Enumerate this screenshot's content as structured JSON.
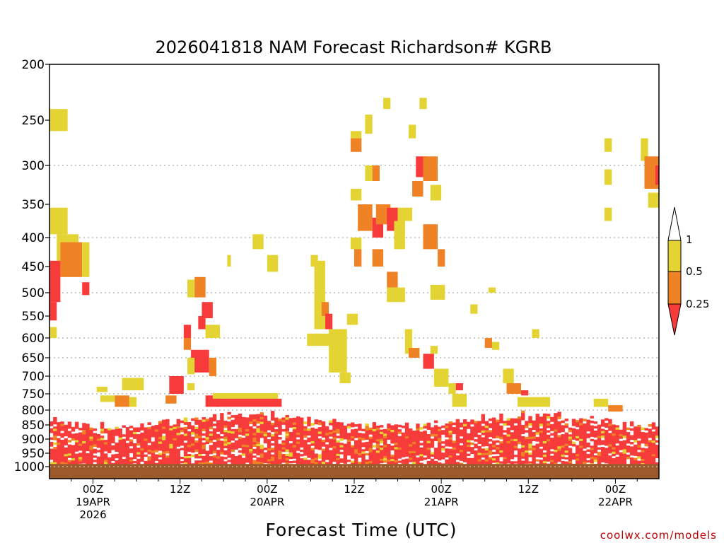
{
  "chart_data": {
    "type": "heatmap",
    "title": "2026041818 NAM Forecast Richardson# KGRB",
    "xlabel": "Forecast Time (UTC)",
    "ylabel": "",
    "x_unit": "forecast hours from 2026-04-18 18Z",
    "xlim": [
      0,
      84
    ],
    "y_unit": "pressure (hPa)",
    "ylim": [
      200,
      1000
    ],
    "y_ticks": [
      200,
      250,
      300,
      350,
      400,
      450,
      500,
      550,
      600,
      650,
      700,
      750,
      800,
      850,
      900,
      950,
      1000
    ],
    "y_gridlines": [
      300,
      400,
      500,
      600,
      650,
      700,
      750,
      800
    ],
    "x_ticks": [
      {
        "hour": 6,
        "lines": [
          "00Z",
          "19APR",
          "2026"
        ]
      },
      {
        "hour": 18,
        "lines": [
          "12Z"
        ]
      },
      {
        "hour": 30,
        "lines": [
          "00Z",
          "20APR"
        ]
      },
      {
        "hour": 42,
        "lines": [
          "12Z"
        ]
      },
      {
        "hour": 54,
        "lines": [
          "00Z",
          "21APR"
        ]
      },
      {
        "hour": 66,
        "lines": [
          "12Z"
        ]
      },
      {
        "hour": 78,
        "lines": [
          "00Z",
          "22APR"
        ]
      }
    ],
    "legend": {
      "placement": "right",
      "levels": [
        "1",
        "0.5",
        "0.25"
      ],
      "bins": [
        {
          "range": "> 1",
          "color": "#ffffff"
        },
        {
          "range": "0.5 - 1",
          "color": "#e3d434"
        },
        {
          "range": "0.25 - 0.5",
          "color": "#ef8224"
        },
        {
          "range": "< 0.25",
          "color": "#f73b3b"
        }
      ]
    },
    "underground_color": "#9c5a2b",
    "categories": [
      "0.5-1",
      "0.25-0.5",
      "<0.25"
    ],
    "cells": [
      {
        "t0": 0,
        "t1": 2.5,
        "p0": 240,
        "p1": 262,
        "c": "Y"
      },
      {
        "t0": 0,
        "t1": 2.5,
        "p0": 355,
        "p1": 395,
        "c": "Y"
      },
      {
        "t0": 1,
        "t1": 4,
        "p0": 395,
        "p1": 445,
        "c": "Y"
      },
      {
        "t0": 1.5,
        "t1": 4.5,
        "p0": 408,
        "p1": 470,
        "c": "O"
      },
      {
        "t0": 4.5,
        "t1": 5.5,
        "p0": 408,
        "p1": 470,
        "c": "Y"
      },
      {
        "t0": 0,
        "t1": 1.5,
        "p0": 440,
        "p1": 520,
        "c": "R"
      },
      {
        "t0": 0,
        "t1": 1,
        "p0": 520,
        "p1": 560,
        "c": "R"
      },
      {
        "t0": 0,
        "t1": 1,
        "p0": 575,
        "p1": 600,
        "c": "Y"
      },
      {
        "t0": 4.5,
        "t1": 5.5,
        "p0": 480,
        "p1": 505,
        "c": "R"
      },
      {
        "t0": 6.5,
        "t1": 8,
        "p0": 730,
        "p1": 745,
        "c": "Y"
      },
      {
        "t0": 7,
        "t1": 9,
        "p0": 755,
        "p1": 775,
        "c": "Y"
      },
      {
        "t0": 9,
        "t1": 11,
        "p0": 755,
        "p1": 790,
        "c": "O"
      },
      {
        "t0": 10,
        "t1": 13,
        "p0": 705,
        "p1": 740,
        "c": "Y"
      },
      {
        "t0": 11,
        "t1": 12,
        "p0": 760,
        "p1": 790,
        "c": "Y"
      },
      {
        "t0": 16.5,
        "t1": 18.5,
        "p0": 700,
        "p1": 750,
        "c": "R"
      },
      {
        "t0": 16,
        "t1": 17.5,
        "p0": 755,
        "p1": 780,
        "c": "O"
      },
      {
        "t0": 19,
        "t1": 20,
        "p0": 720,
        "p1": 740,
        "c": "Y"
      },
      {
        "t0": 19,
        "t1": 20,
        "p0": 475,
        "p1": 510,
        "c": "Y"
      },
      {
        "t0": 20,
        "t1": 21.5,
        "p0": 470,
        "p1": 510,
        "c": "O"
      },
      {
        "t0": 21,
        "t1": 22.5,
        "p0": 520,
        "p1": 555,
        "c": "R"
      },
      {
        "t0": 20.5,
        "t1": 21.5,
        "p0": 550,
        "p1": 580,
        "c": "R"
      },
      {
        "t0": 21.5,
        "t1": 23.5,
        "p0": 570,
        "p1": 600,
        "c": "Y"
      },
      {
        "t0": 18.5,
        "t1": 19.5,
        "p0": 570,
        "p1": 600,
        "c": "R"
      },
      {
        "t0": 18.5,
        "t1": 19.5,
        "p0": 600,
        "p1": 630,
        "c": "O"
      },
      {
        "t0": 19.5,
        "t1": 22,
        "p0": 630,
        "p1": 690,
        "c": "R"
      },
      {
        "t0": 22,
        "t1": 23,
        "p0": 650,
        "p1": 700,
        "c": "O"
      },
      {
        "t0": 19,
        "t1": 20,
        "p0": 650,
        "p1": 695,
        "c": "Y"
      },
      {
        "t0": 21.5,
        "t1": 23.5,
        "p0": 755,
        "p1": 790,
        "c": "R"
      },
      {
        "t0": 22.5,
        "t1": 31.5,
        "p0": 748,
        "p1": 765,
        "c": "Y"
      },
      {
        "t0": 23,
        "t1": 32,
        "p0": 765,
        "p1": 790,
        "c": "R"
      },
      {
        "t0": 28,
        "t1": 29.5,
        "p0": 395,
        "p1": 420,
        "c": "Y"
      },
      {
        "t0": 30,
        "t1": 31.5,
        "p0": 430,
        "p1": 460,
        "c": "Y"
      },
      {
        "t0": 24.5,
        "t1": 25,
        "p0": 430,
        "p1": 450,
        "c": "Y"
      },
      {
        "t0": 36,
        "t1": 37,
        "p0": 430,
        "p1": 450,
        "c": "Y"
      },
      {
        "t0": 36.5,
        "t1": 38,
        "p0": 440,
        "p1": 580,
        "c": "Y"
      },
      {
        "t0": 37.5,
        "t1": 38.5,
        "p0": 520,
        "p1": 550,
        "c": "O"
      },
      {
        "t0": 38,
        "t1": 39,
        "p0": 545,
        "p1": 580,
        "c": "R"
      },
      {
        "t0": 35.5,
        "t1": 39,
        "p0": 590,
        "p1": 620,
        "c": "Y"
      },
      {
        "t0": 38.5,
        "t1": 41,
        "p0": 580,
        "p1": 690,
        "c": "Y"
      },
      {
        "t0": 40,
        "t1": 41.5,
        "p0": 690,
        "p1": 720,
        "c": "Y"
      },
      {
        "t0": 41,
        "t1": 42.5,
        "p0": 545,
        "p1": 570,
        "c": "Y"
      },
      {
        "t0": 43.5,
        "t1": 44.5,
        "p0": 245,
        "p1": 265,
        "c": "Y"
      },
      {
        "t0": 46,
        "t1": 47,
        "p0": 230,
        "p1": 240,
        "c": "Y"
      },
      {
        "t0": 41.5,
        "t1": 43,
        "p0": 262,
        "p1": 270,
        "c": "Y"
      },
      {
        "t0": 41.5,
        "t1": 43,
        "p0": 270,
        "p1": 285,
        "c": "O"
      },
      {
        "t0": 43.5,
        "t1": 45.5,
        "p0": 300,
        "p1": 320,
        "c": "Y"
      },
      {
        "t0": 44.5,
        "t1": 45.5,
        "p0": 300,
        "p1": 320,
        "c": "O"
      },
      {
        "t0": 41.5,
        "t1": 43,
        "p0": 330,
        "p1": 345,
        "c": "Y"
      },
      {
        "t0": 42.5,
        "t1": 44.5,
        "p0": 350,
        "p1": 390,
        "c": "O"
      },
      {
        "t0": 44.5,
        "t1": 46,
        "p0": 370,
        "p1": 400,
        "c": "R"
      },
      {
        "t0": 45,
        "t1": 47,
        "p0": 350,
        "p1": 380,
        "c": "O"
      },
      {
        "t0": 46.5,
        "t1": 48,
        "p0": 355,
        "p1": 390,
        "c": "R"
      },
      {
        "t0": 47.5,
        "t1": 49,
        "p0": 375,
        "p1": 420,
        "c": "Y"
      },
      {
        "t0": 48,
        "t1": 50,
        "p0": 355,
        "p1": 375,
        "c": "Y"
      },
      {
        "t0": 41.5,
        "t1": 43,
        "p0": 400,
        "p1": 420,
        "c": "Y"
      },
      {
        "t0": 42,
        "t1": 43,
        "p0": 420,
        "p1": 450,
        "c": "O"
      },
      {
        "t0": 44.5,
        "t1": 46,
        "p0": 420,
        "p1": 450,
        "c": "O"
      },
      {
        "t0": 46.5,
        "t1": 48,
        "p0": 460,
        "p1": 490,
        "c": "O"
      },
      {
        "t0": 46.5,
        "t1": 49,
        "p0": 490,
        "p1": 520,
        "c": "Y"
      },
      {
        "t0": 51,
        "t1": 52,
        "p0": 230,
        "p1": 240,
        "c": "Y"
      },
      {
        "t0": 49.5,
        "t1": 50.5,
        "p0": 255,
        "p1": 270,
        "c": "Y"
      },
      {
        "t0": 50.5,
        "t1": 52,
        "p0": 290,
        "p1": 315,
        "c": "R"
      },
      {
        "t0": 51.5,
        "t1": 53.5,
        "p0": 290,
        "p1": 320,
        "c": "O"
      },
      {
        "t0": 50,
        "t1": 51.5,
        "p0": 320,
        "p1": 340,
        "c": "O"
      },
      {
        "t0": 52.5,
        "t1": 54,
        "p0": 325,
        "p1": 345,
        "c": "Y"
      },
      {
        "t0": 51.5,
        "t1": 53.5,
        "p0": 380,
        "p1": 420,
        "c": "O"
      },
      {
        "t0": 52.5,
        "t1": 54.5,
        "p0": 485,
        "p1": 515,
        "c": "Y"
      },
      {
        "t0": 53.5,
        "t1": 54.5,
        "p0": 420,
        "p1": 450,
        "c": "O"
      },
      {
        "t0": 49,
        "t1": 50,
        "p0": 580,
        "p1": 640,
        "c": "Y"
      },
      {
        "t0": 49.5,
        "t1": 51,
        "p0": 625,
        "p1": 650,
        "c": "O"
      },
      {
        "t0": 51.5,
        "t1": 53,
        "p0": 640,
        "p1": 680,
        "c": "R"
      },
      {
        "t0": 52.5,
        "t1": 53.5,
        "p0": 620,
        "p1": 640,
        "c": "Y"
      },
      {
        "t0": 53,
        "t1": 55,
        "p0": 680,
        "p1": 730,
        "c": "Y"
      },
      {
        "t0": 55,
        "t1": 56,
        "p0": 720,
        "p1": 750,
        "c": "Y"
      },
      {
        "t0": 56,
        "t1": 57,
        "p0": 720,
        "p1": 740,
        "c": "R"
      },
      {
        "t0": 55.5,
        "t1": 57.5,
        "p0": 750,
        "p1": 790,
        "c": "Y"
      },
      {
        "t0": 58,
        "t1": 59,
        "p0": 525,
        "p1": 545,
        "c": "Y"
      },
      {
        "t0": 60,
        "t1": 61,
        "p0": 600,
        "p1": 625,
        "c": "O"
      },
      {
        "t0": 61,
        "t1": 62,
        "p0": 610,
        "p1": 630,
        "c": "Y"
      },
      {
        "t0": 60.5,
        "t1": 61.5,
        "p0": 490,
        "p1": 500,
        "c": "Y"
      },
      {
        "t0": 62.5,
        "t1": 64,
        "p0": 680,
        "p1": 720,
        "c": "Y"
      },
      {
        "t0": 63,
        "t1": 65,
        "p0": 720,
        "p1": 750,
        "c": "O"
      },
      {
        "t0": 65,
        "t1": 66,
        "p0": 740,
        "p1": 755,
        "c": "R"
      },
      {
        "t0": 66.5,
        "t1": 67.5,
        "p0": 580,
        "p1": 600,
        "c": "Y"
      },
      {
        "t0": 64.5,
        "t1": 69,
        "p0": 760,
        "p1": 790,
        "c": "Y"
      },
      {
        "t0": 76.5,
        "t1": 77.5,
        "p0": 270,
        "p1": 285,
        "c": "Y"
      },
      {
        "t0": 76.5,
        "t1": 77.5,
        "p0": 305,
        "p1": 325,
        "c": "Y"
      },
      {
        "t0": 76.5,
        "t1": 77.5,
        "p0": 355,
        "p1": 375,
        "c": "Y"
      },
      {
        "t0": 81.5,
        "t1": 82.5,
        "p0": 270,
        "p1": 295,
        "c": "Y"
      },
      {
        "t0": 82,
        "t1": 84,
        "p0": 290,
        "p1": 330,
        "c": "O"
      },
      {
        "t0": 83.5,
        "t1": 84,
        "p0": 300,
        "p1": 325,
        "c": "R"
      },
      {
        "t0": 82.5,
        "t1": 84,
        "p0": 335,
        "p1": 355,
        "c": "Y"
      },
      {
        "t0": 75,
        "t1": 77,
        "p0": 765,
        "p1": 790,
        "c": "Y"
      },
      {
        "t0": 77,
        "t1": 79,
        "p0": 785,
        "p1": 805,
        "c": "O"
      }
    ]
  }
}
